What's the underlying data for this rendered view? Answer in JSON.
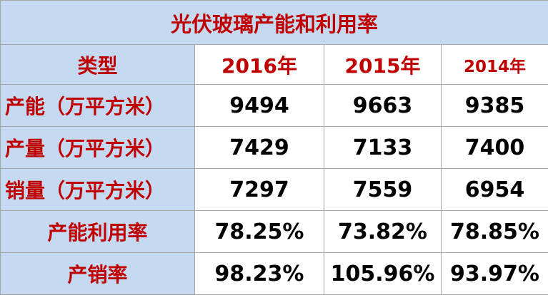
{
  "table": {
    "title": "光伏玻璃产能和利用率",
    "header": [
      "类型",
      "2016年",
      "2015年",
      "2014年"
    ],
    "rows": [
      [
        "产能（万平方米）",
        "9494",
        "9663",
        "9385"
      ],
      [
        "产量（万平方米）",
        "7429",
        "7133",
        "7400"
      ],
      [
        "销量（万平方米）",
        "7297",
        "7559",
        "6954"
      ],
      [
        "产能利用率",
        "78.25%",
        "73.82%",
        "78.85%"
      ],
      [
        "产销率",
        "98.23%",
        "105.96%",
        "93.97%"
      ]
    ]
  }
}
